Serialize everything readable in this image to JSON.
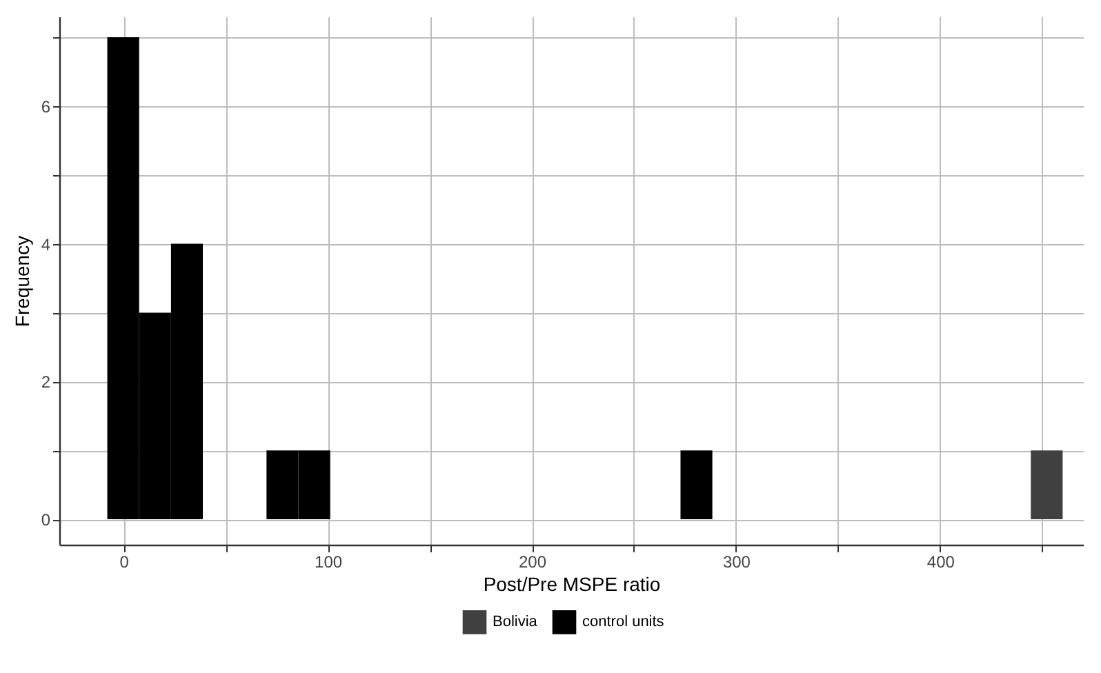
{
  "chart_data": {
    "type": "histogram",
    "xlabel": "Post/Pre MSPE ratio",
    "ylabel": "Frequency",
    "bins": [
      -8,
      7.6,
      23.2,
      38.8,
      54.4,
      70,
      85.6,
      101.2,
      116.8,
      132.4,
      148,
      163.6,
      179.2,
      194.8,
      210.4,
      226,
      241.6,
      257.2,
      272.8,
      288.4,
      304,
      319.6,
      335.2,
      350.8,
      366.4,
      382,
      397.6,
      413.2,
      428.8,
      444.4,
      460
    ],
    "series": [
      {
        "name": "Bolivia",
        "color": "#404040",
        "values": [
          0,
          0,
          0,
          0,
          0,
          0,
          0,
          0,
          0,
          0,
          0,
          0,
          0,
          0,
          0,
          0,
          0,
          0,
          0,
          0,
          0,
          0,
          0,
          0,
          0,
          0,
          0,
          0,
          0,
          1
        ]
      },
      {
        "name": "control units",
        "color": "#000000",
        "values": [
          7,
          3,
          4,
          0,
          0,
          1,
          1,
          0,
          0,
          0,
          0,
          0,
          0,
          0,
          0,
          0,
          0,
          0,
          1,
          0,
          0,
          0,
          0,
          0,
          0,
          0,
          0,
          0,
          0,
          0
        ]
      }
    ],
    "xlim": [
      -31.5,
      470
    ],
    "ylim": [
      -0.37,
      7.3
    ],
    "xticks": [
      0,
      {
        "value": 50,
        "label": null
      },
      100,
      {
        "value": 150,
        "label": null
      },
      200,
      {
        "value": 250,
        "label": null
      },
      300,
      {
        "value": 350,
        "label": null
      },
      400,
      {
        "value": 450,
        "label": null
      }
    ],
    "yticks": [
      0,
      {
        "value": 1,
        "label": null
      },
      2,
      {
        "value": 3,
        "label": null
      },
      4,
      {
        "value": 5,
        "label": null
      },
      6,
      {
        "value": 7,
        "label": null
      }
    ],
    "grid": true,
    "legend": "bottom"
  }
}
